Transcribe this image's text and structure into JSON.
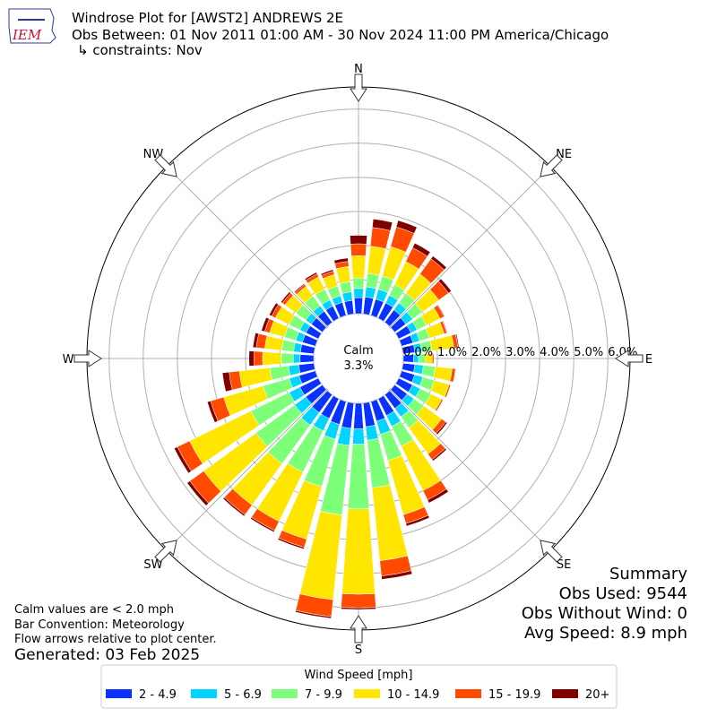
{
  "chart_data": {
    "type": "windrose",
    "title": "Windrose Plot for [AWST2] ANDREWS 2E",
    "subtitle": "Obs Between: 01 Nov 2011 01:00 AM - 30 Nov 2024 11:00 PM America/Chicago",
    "constraints": "↳ constraints: Nov",
    "logo_text": "IEM",
    "x": [
      0,
      10,
      20,
      30,
      40,
      50,
      60,
      70,
      80,
      90,
      100,
      110,
      120,
      130,
      140,
      150,
      160,
      170,
      180,
      190,
      200,
      210,
      220,
      230,
      240,
      250,
      260,
      270,
      280,
      290,
      300,
      310,
      320,
      330,
      340,
      350
    ],
    "xticks": [
      {
        "value": 0,
        "label": "N"
      },
      {
        "value": 45,
        "label": "NE"
      },
      {
        "value": 90,
        "label": "E"
      },
      {
        "value": 135,
        "label": "SE"
      },
      {
        "value": 180,
        "label": "S"
      },
      {
        "value": 225,
        "label": "SW"
      },
      {
        "value": 270,
        "label": "W"
      },
      {
        "value": 315,
        "label": "NW"
      }
    ],
    "rlim": [
      0,
      6.65
    ],
    "rticks": [
      {
        "value": 0,
        "label": "0.0%"
      },
      {
        "value": 1,
        "label": "1.0%"
      },
      {
        "value": 2,
        "label": "2.0%"
      },
      {
        "value": 3,
        "label": "3.0%"
      },
      {
        "value": 4,
        "label": "4.0%"
      },
      {
        "value": 5,
        "label": "5.0%"
      },
      {
        "value": 6,
        "label": "6.0%"
      }
    ],
    "grid": true,
    "calm_title": "Calm",
    "calm": {
      "value": 3.3,
      "label": "3.3%"
    },
    "legend_title": "Wind Speed [mph]",
    "series": [
      {
        "name": "2 - 4.9",
        "color": "#0a32ff",
        "values": [
          0.47,
          0.5,
          0.5,
          0.5,
          0.45,
          0.4,
          0.4,
          0.35,
          0.35,
          0.3,
          0.35,
          0.4,
          0.45,
          0.45,
          0.5,
          0.55,
          0.6,
          0.7,
          0.75,
          0.75,
          0.7,
          0.65,
          0.65,
          0.6,
          0.6,
          0.5,
          0.45,
          0.4,
          0.4,
          0.4,
          0.4,
          0.4,
          0.4,
          0.4,
          0.4,
          0.4
        ]
      },
      {
        "name": "5 - 6.9",
        "color": "#00d4ff",
        "values": [
          0.27,
          0.3,
          0.3,
          0.25,
          0.25,
          0.25,
          0.2,
          0.2,
          0.2,
          0.15,
          0.25,
          0.25,
          0.25,
          0.25,
          0.3,
          0.35,
          0.4,
          0.4,
          0.45,
          0.5,
          0.45,
          0.4,
          0.45,
          0.4,
          0.35,
          0.3,
          0.3,
          0.2,
          0.2,
          0.2,
          0.2,
          0.2,
          0.2,
          0.2,
          0.2,
          0.25
        ]
      },
      {
        "name": "7 - 9.9",
        "color": "#7dff7a",
        "values": [
          0.31,
          0.4,
          0.4,
          0.35,
          0.35,
          0.35,
          0.3,
          0.3,
          0.3,
          0.2,
          0.35,
          0.35,
          0.35,
          0.35,
          0.4,
          0.65,
          0.8,
          1.4,
          1.9,
          2.05,
          1.45,
          1.35,
          1.4,
          1.4,
          1.25,
          0.8,
          0.55,
          0.35,
          0.35,
          0.35,
          0.35,
          0.35,
          0.35,
          0.35,
          0.3,
          0.3
        ]
      },
      {
        "name": "10 - 14.9",
        "color": "#ffe600",
        "values": [
          0.65,
          0.8,
          0.9,
          0.75,
          0.7,
          0.6,
          0.45,
          0.45,
          0.65,
          0.2,
          0.5,
          0.45,
          0.35,
          0.65,
          0.95,
          1.45,
          1.65,
          2.15,
          2.5,
          2.5,
          1.6,
          1.6,
          1.5,
          1.9,
          2.0,
          1.2,
          0.9,
          0.55,
          0.5,
          0.45,
          0.45,
          0.4,
          0.35,
          0.4,
          0.35,
          0.45
        ]
      },
      {
        "name": "15 - 19.9",
        "color": "#ff4a00",
        "values": [
          0.35,
          0.55,
          0.6,
          0.45,
          0.55,
          0.35,
          0.13,
          0.08,
          0.12,
          0.05,
          0.1,
          0.05,
          0.05,
          0.15,
          0.2,
          0.3,
          0.27,
          0.45,
          0.4,
          0.5,
          0.25,
          0.3,
          0.35,
          0.5,
          0.4,
          0.4,
          0.3,
          0.25,
          0.25,
          0.15,
          0.12,
          0.1,
          0.07,
          0.1,
          0.1,
          0.15
        ]
      },
      {
        "name": "20+",
        "color": "#800000",
        "values": [
          0.25,
          0.25,
          0.2,
          0.15,
          0.1,
          0.1,
          0.02,
          0.02,
          0.03,
          0,
          0,
          0,
          0,
          0.05,
          0.05,
          0.1,
          0.08,
          0.1,
          0.05,
          0.05,
          0.05,
          0.05,
          0.05,
          0.1,
          0.1,
          0.1,
          0.2,
          0.15,
          0.1,
          0.1,
          0.08,
          0.05,
          0.03,
          0.05,
          0.05,
          0.1
        ]
      }
    ],
    "summary": {
      "title": "Summary",
      "lines": [
        "Obs Used: 9544",
        "Obs Without Wind: 0",
        "Avg Speed: 8.9 mph"
      ]
    },
    "notes": [
      "Calm values are < 2.0 mph",
      "Bar Convention: Meteorology",
      "Flow arrows relative to plot center."
    ],
    "generated": "Generated: 03 Feb 2025"
  }
}
